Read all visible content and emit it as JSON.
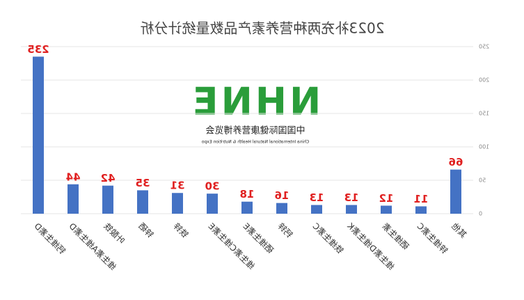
{
  "chart_data": {
    "type": "bar",
    "title": "2023补充两种营养素产品数量统计分析",
    "categories": [
      "其他",
      "锌维生素C",
      "硒维生素",
      "维生素D维生素K",
      "铁维生素C",
      "钙锌",
      "硒维生素E",
      "维生素C维生素E",
      "铁锌",
      "锌硒",
      "叶酸铁",
      "维生素A维生素D",
      "钙维生素D"
    ],
    "values": [
      66,
      11,
      12,
      13,
      13,
      16,
      18,
      30,
      31,
      35,
      42,
      44,
      235
    ],
    "color": "#4472c4",
    "label_color": "#e02020",
    "ylim": [
      0,
      250
    ],
    "yticks": [
      0,
      50,
      100,
      150,
      200,
      250
    ],
    "grid": true,
    "mirrored": true
  },
  "logo": {
    "mark": "NHNE",
    "name": "中国国际健康营养博览会",
    "subtitle": "China International Natural Health & Nutrition Expo"
  }
}
